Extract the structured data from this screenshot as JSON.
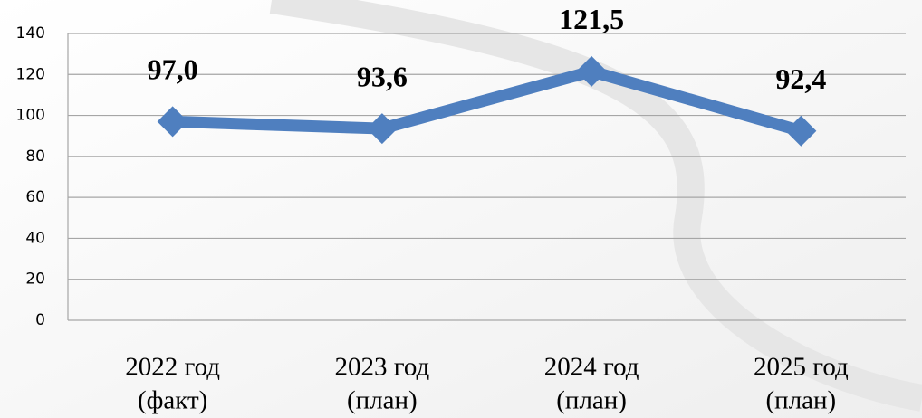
{
  "chart_data": {
    "type": "line",
    "categories": [
      [
        "2022 год",
        "(факт)"
      ],
      [
        "2023 год",
        "(план)"
      ],
      [
        "2024 год",
        "(план)"
      ],
      [
        "2025 год",
        "(план)"
      ]
    ],
    "values": [
      97.0,
      93.6,
      121.5,
      92.4
    ],
    "value_labels": [
      "97,0",
      "93,6",
      "121,5",
      "92,4"
    ],
    "color": "#4f7fbf",
    "ylim": [
      0,
      140
    ],
    "yticks": [
      0,
      20,
      40,
      60,
      80,
      100,
      120,
      140
    ],
    "grid": true
  }
}
